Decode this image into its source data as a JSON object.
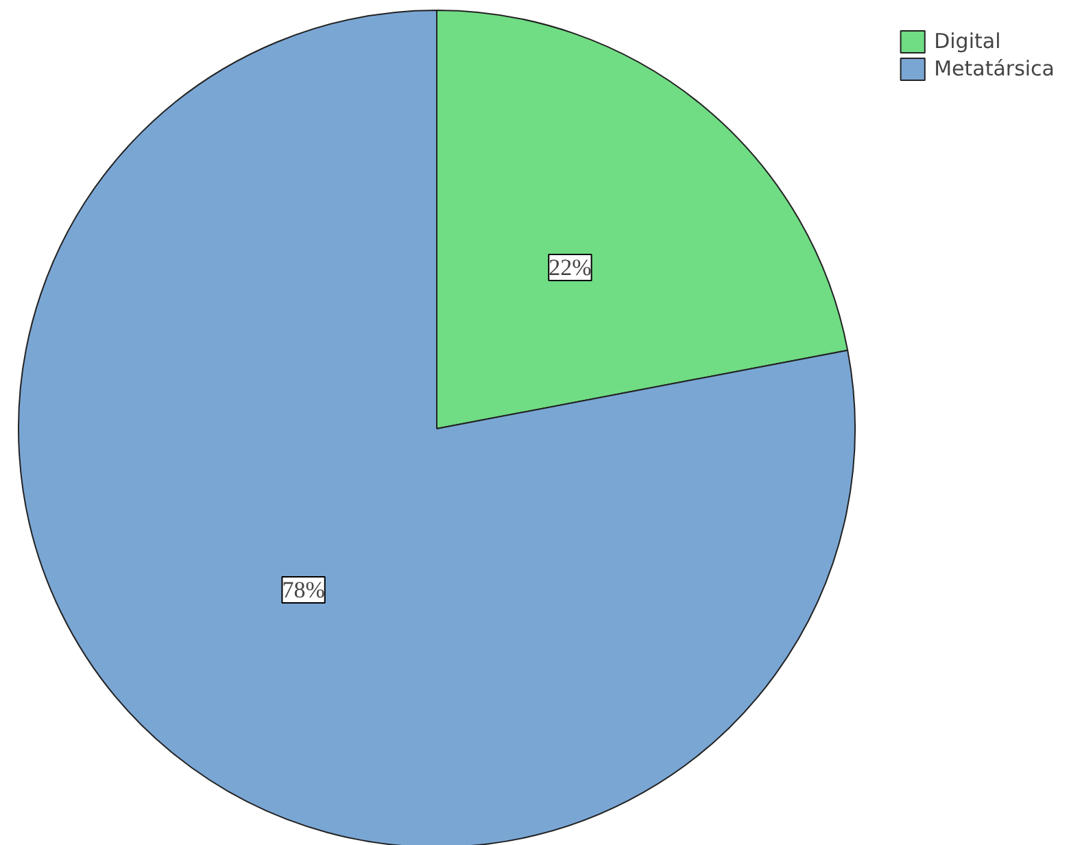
{
  "chart_data": {
    "type": "pie",
    "categories": [
      "Digital",
      "Metatársica"
    ],
    "values": [
      22,
      78
    ],
    "colors": [
      "#70dc84",
      "#7aa6d4"
    ],
    "value_labels": [
      "22%",
      "78%"
    ],
    "legend": "top right"
  }
}
